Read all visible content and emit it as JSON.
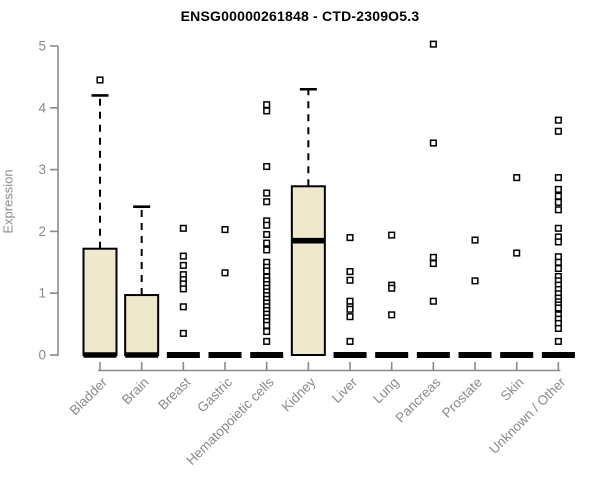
{
  "chart_data": {
    "type": "boxplot",
    "title": "ENSG00000261848 - CTD-2309O5.3",
    "ylabel": "Expression",
    "xlabel": "",
    "ylim": [
      0,
      5
    ],
    "yticks": [
      0,
      1,
      2,
      3,
      4,
      5
    ],
    "grid": false,
    "legend": "none",
    "colors": {
      "box_fill": "#EEE8CD",
      "box_stroke": "#000000",
      "axis": "#8a8a8a",
      "tick_label": "#8a8a8a",
      "title": "#000000",
      "outlier_fill": "#ffffff",
      "outlier_stroke": "#000000"
    },
    "categories": [
      "Bladder",
      "Brain",
      "Breast",
      "Gastric",
      "Hematopoietic cells",
      "Kidney",
      "Liver",
      "Lung",
      "Pancreas",
      "Prostate",
      "Skin",
      "Unknown / Other"
    ],
    "series": [
      {
        "category": "Bladder",
        "q1": 0,
        "median": 0,
        "q3": 1.72,
        "whisker_low": 0,
        "whisker_high": 4.2,
        "outliers": [
          4.45
        ]
      },
      {
        "category": "Brain",
        "q1": 0,
        "median": 0,
        "q3": 0.97,
        "whisker_low": 0,
        "whisker_high": 2.4,
        "outliers": []
      },
      {
        "category": "Breast",
        "q1": 0,
        "median": 0,
        "q3": 0,
        "whisker_low": 0,
        "whisker_high": 0,
        "outliers": [
          2.05,
          1.6,
          1.45,
          1.3,
          1.22,
          1.15,
          1.07,
          0.78,
          0.35
        ]
      },
      {
        "category": "Gastric",
        "q1": 0,
        "median": 0,
        "q3": 0,
        "whisker_low": 0,
        "whisker_high": 0,
        "outliers": [
          2.03,
          1.33
        ]
      },
      {
        "category": "Hematopoietic cells",
        "q1": 0,
        "median": 0,
        "q3": 0,
        "whisker_low": 0,
        "whisker_high": 0,
        "outliers": [
          4.05,
          3.95,
          3.05,
          2.62,
          2.48,
          2.17,
          2.1,
          1.95,
          1.81,
          1.7,
          1.5,
          1.42,
          1.36,
          1.26,
          1.2,
          1.14,
          1.08,
          1.02,
          0.96,
          0.9,
          0.84,
          0.78,
          0.72,
          0.66,
          0.6,
          0.54,
          0.48,
          0.38,
          0.22
        ]
      },
      {
        "category": "Kidney",
        "q1": 0,
        "median": 1.85,
        "q3": 2.73,
        "whisker_low": 0,
        "whisker_high": 4.3,
        "outliers": []
      },
      {
        "category": "Liver",
        "q1": 0,
        "median": 0,
        "q3": 0,
        "whisker_low": 0,
        "whisker_high": 0,
        "outliers": [
          1.9,
          1.35,
          1.21,
          0.87,
          0.78,
          0.74,
          0.62,
          0.22
        ]
      },
      {
        "category": "Lung",
        "q1": 0,
        "median": 0,
        "q3": 0,
        "whisker_low": 0,
        "whisker_high": 0,
        "outliers": [
          1.94,
          1.13,
          1.08,
          0.65
        ]
      },
      {
        "category": "Pancreas",
        "q1": 0,
        "median": 0,
        "q3": 0,
        "whisker_low": 0,
        "whisker_high": 0,
        "outliers": [
          5.03,
          3.43,
          1.58,
          1.48,
          0.87
        ]
      },
      {
        "category": "Prostate",
        "q1": 0,
        "median": 0,
        "q3": 0,
        "whisker_low": 0,
        "whisker_high": 0,
        "outliers": [
          1.86,
          1.2
        ]
      },
      {
        "category": "Skin",
        "q1": 0,
        "median": 0,
        "q3": 0,
        "whisker_low": 0,
        "whisker_high": 0,
        "outliers": [
          2.87,
          1.65
        ]
      },
      {
        "category": "Unknown / Other",
        "q1": 0,
        "median": 0,
        "q3": 0,
        "whisker_low": 0,
        "whisker_high": 0,
        "outliers": [
          3.8,
          3.62,
          2.87,
          2.68,
          2.57,
          2.47,
          2.35,
          2.05,
          1.91,
          1.83,
          1.59,
          1.5,
          1.4,
          1.27,
          1.2,
          1.13,
          1.06,
          0.99,
          0.92,
          0.86,
          0.81,
          0.76,
          0.65,
          0.58,
          0.51,
          0.43,
          0.22
        ]
      }
    ]
  }
}
